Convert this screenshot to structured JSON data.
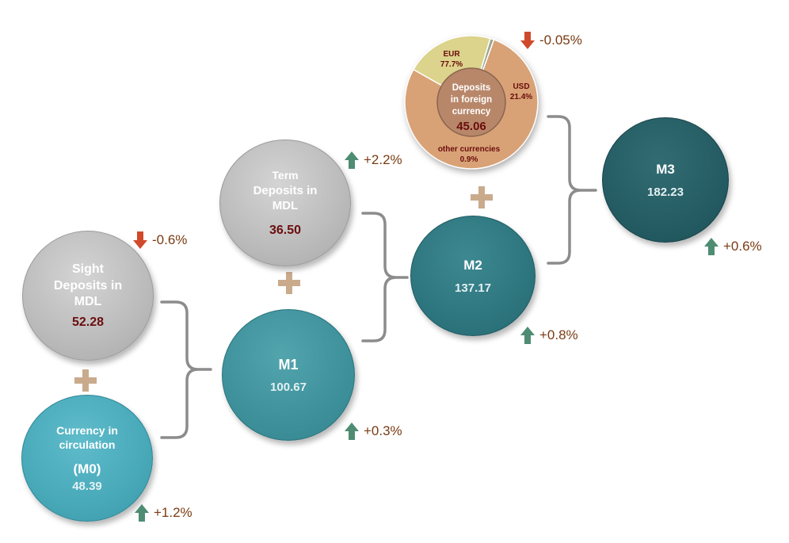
{
  "nodes": {
    "sight": {
      "label_lines": [
        "Sight",
        "Deposits in",
        "MDL"
      ],
      "value": "52.28",
      "change": "-0.6%"
    },
    "m0": {
      "label_lines": [
        "Currency in",
        "circulation"
      ],
      "sub_label": "(M0)",
      "value": "48.39",
      "change": "+1.2%"
    },
    "term": {
      "label_lines": [
        "Term",
        "Deposits in",
        "MDL"
      ],
      "value": "36.50",
      "change": "+2.2%"
    },
    "m1": {
      "label": "M1",
      "value": "100.67",
      "change": "+0.3%"
    },
    "m2": {
      "label": "M2",
      "value": "137.17",
      "change": "+0.8%"
    },
    "m3": {
      "label": "M3",
      "value": "182.23",
      "change": "+0.6%"
    },
    "foreign": {
      "label_lines": [
        "Deposits",
        "in foreign",
        "currency"
      ],
      "value": "45.06",
      "change": "-0.05%",
      "segments": [
        {
          "name": "EUR",
          "share": "77.7%",
          "fraction": 0.777,
          "color": "#d8a276"
        },
        {
          "name": "USD",
          "share": "21.4%",
          "fraction": 0.214,
          "color": "#dcd38c"
        },
        {
          "name": "other currencies",
          "share": "0.9%",
          "fraction": 0.009,
          "color": "#9aa58c"
        }
      ]
    }
  },
  "colors": {
    "up_arrow": "#4e8c73",
    "down_arrow": "#cf4a2b",
    "connector": "#8c8c8c",
    "plus": "#c9ab8c"
  }
}
